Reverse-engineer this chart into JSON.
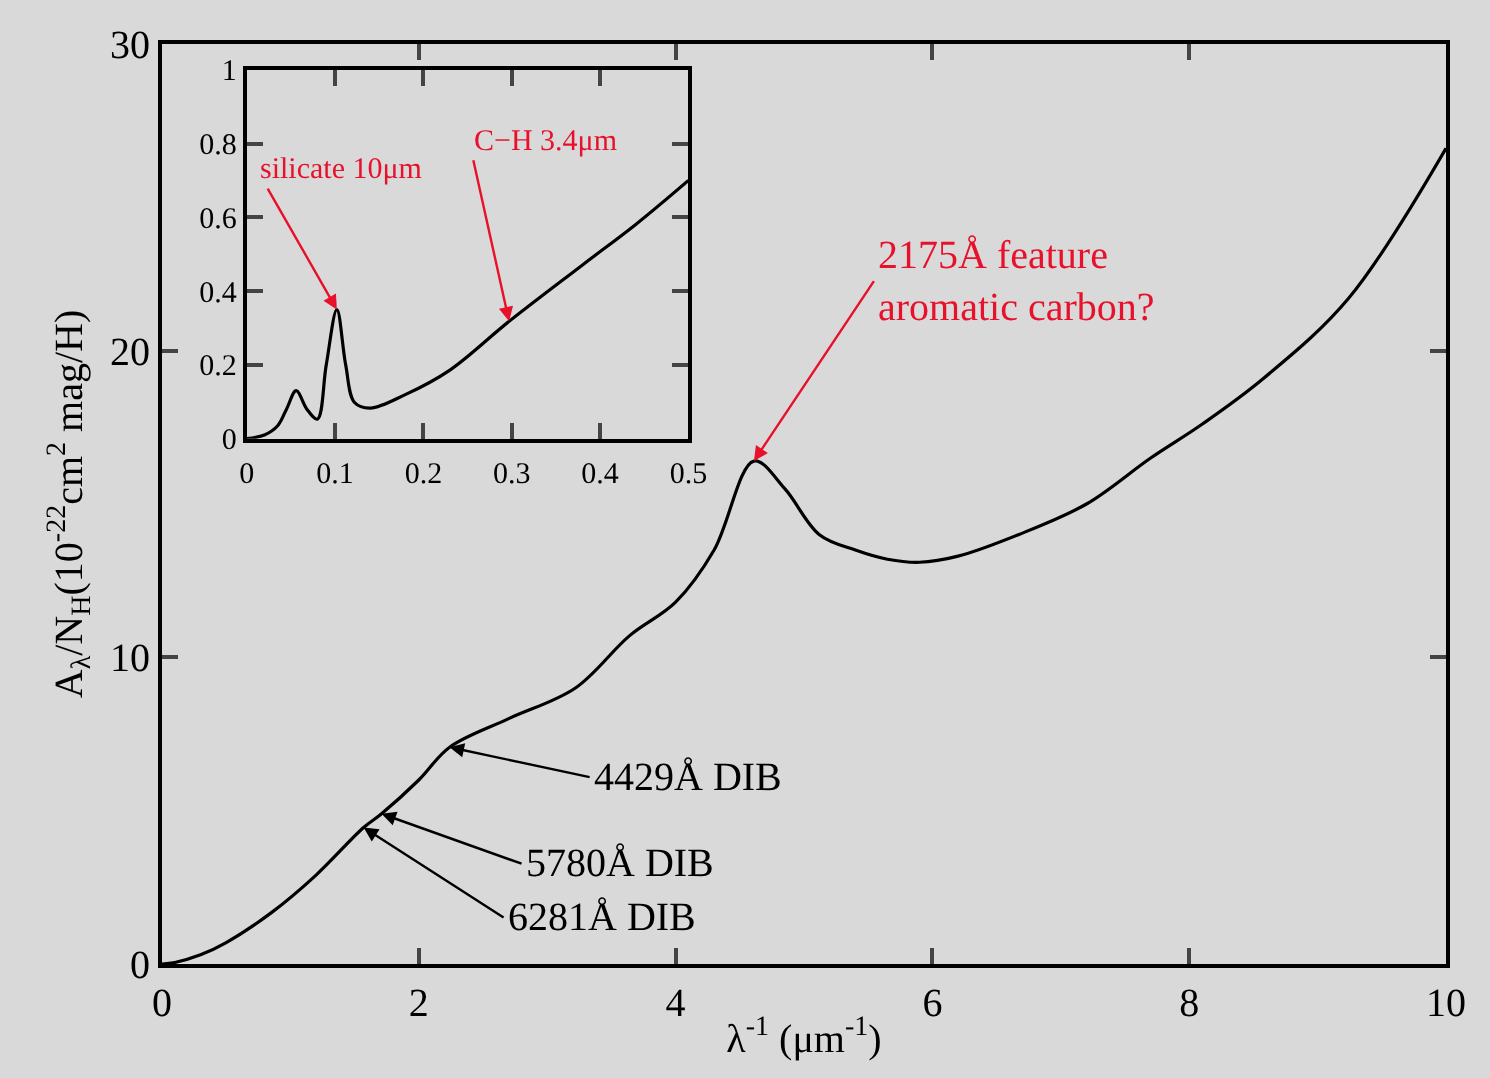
{
  "chart_data": [
    {
      "type": "line",
      "xlabel": "λ$^{-1}$ (μm$^{-1}$)",
      "ylabel": "A$_{λ}$/N$_{H}$(10$^{-22}$cm$^{2}$ mag/H)",
      "x": [
        0,
        0.1,
        0.3,
        0.5,
        0.86,
        1.2,
        1.57,
        1.71,
        2.0,
        2.24,
        2.7,
        3.22,
        3.64,
        4.0,
        4.3,
        4.61,
        4.85,
        5.12,
        5.4,
        5.65,
        5.9,
        6.2,
        6.67,
        7.2,
        7.7,
        8.1,
        8.58,
        9.24,
        10
      ],
      "series": [
        {
          "color": "#000000",
          "values": [
            0,
            0.05,
            0.3,
            0.7,
            1.7,
            2.9,
            4.45,
            4.9,
            6.0,
            7.07,
            8.0,
            9.0,
            10.7,
            11.8,
            13.5,
            16.4,
            15.5,
            14.0,
            13.5,
            13.2,
            13.1,
            13.3,
            14.0,
            15.0,
            16.5,
            17.6,
            19.1,
            21.7,
            26.6
          ]
        }
      ],
      "xlim": [
        0,
        10
      ],
      "ylim": [
        0,
        30
      ],
      "xticks": [
        0,
        2,
        4,
        6,
        8,
        10
      ],
      "yticks": [
        0,
        10,
        20,
        30
      ],
      "grid": false,
      "line_style": "solid",
      "marker": "none",
      "annotations": [
        {
          "text": "2175Å feature\naromatic carbon?",
          "x": 4.61,
          "y": 16.4
        },
        {
          "text": "4429Å DIB",
          "x": 2.24,
          "y": 7.07
        },
        {
          "text": "5780Å DIB",
          "x": 1.71,
          "y": 4.9
        },
        {
          "text": "6281Å DIB",
          "x": 1.57,
          "y": 4.45
        }
      ]
    },
    {
      "type": "line",
      "x": [
        0,
        0.02,
        0.035,
        0.045,
        0.056,
        0.068,
        0.08,
        0.09,
        0.102,
        0.112,
        0.122,
        0.14,
        0.18,
        0.23,
        0.297,
        0.379,
        0.44,
        0.5
      ],
      "series": [
        {
          "color": "#000000",
          "values": [
            0,
            0.01,
            0.035,
            0.08,
            0.13,
            0.08,
            0.053,
            0.2,
            0.35,
            0.2,
            0.098,
            0.083,
            0.12,
            0.186,
            0.318,
            0.469,
            0.58,
            0.7
          ]
        }
      ],
      "xlim": [
        0,
        0.5
      ],
      "ylim": [
        0,
        1
      ],
      "xticks": [
        0,
        0.1,
        0.2,
        0.3,
        0.4,
        0.5
      ],
      "yticks": [
        0,
        0.2,
        0.4,
        0.6,
        0.8,
        1
      ],
      "grid": false,
      "line_style": "solid",
      "marker": "none",
      "annotations": [
        {
          "text": "silicate 10μm",
          "x": 0.102,
          "y": 0.35
        },
        {
          "text": "C−H 3.4μm",
          "x": 0.297,
          "y": 0.318
        }
      ]
    }
  ]
}
